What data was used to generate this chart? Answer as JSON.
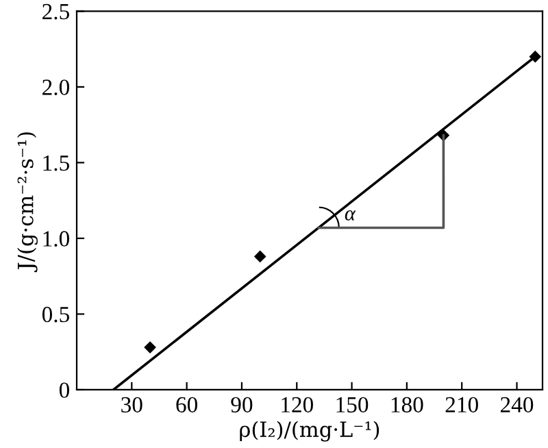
{
  "chart_data": {
    "type": "scatter",
    "xlabel": "ρ(I₂)/(mg·L⁻¹)",
    "ylabel": "J/(g·cm⁻²·s⁻¹)",
    "xlim": [
      0,
      254
    ],
    "ylim": [
      0,
      2.5
    ],
    "xticks": [
      30,
      60,
      90,
      120,
      150,
      180,
      210,
      240
    ],
    "yticks": [
      0,
      0.5,
      {
        "value": 1.0,
        "label": "1.0"
      },
      1.5,
      {
        "value": 2.0,
        "label": "2.0"
      },
      2.5
    ],
    "grid": false,
    "legend": false,
    "marker": "diamond",
    "series": [
      {
        "color": "#000000",
        "x": [
          40,
          100,
          200,
          250
        ],
        "values": [
          0.28,
          0.88,
          1.68,
          2.2
        ]
      },
      {
        "type": "line",
        "color": "#000000",
        "marker": "none",
        "x": [
          20,
          250
        ],
        "values": [
          0,
          2.2
        ]
      },
      {
        "type": "line",
        "color": "#555555",
        "marker": "none",
        "x": [
          132,
          200,
          200
        ],
        "values": [
          1.07,
          1.07,
          1.68
        ]
      }
    ],
    "annotations": [
      "α"
    ]
  }
}
